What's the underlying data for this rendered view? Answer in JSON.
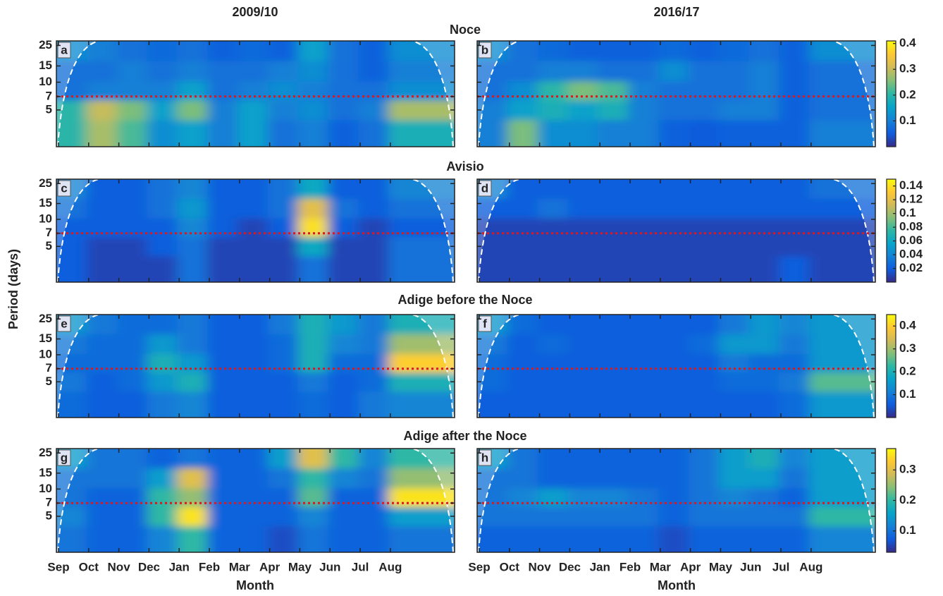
{
  "chart_data": {
    "type": "heatmap",
    "column_titles": [
      "2009/10",
      "2016/17"
    ],
    "xlabel": "Month",
    "ylabel": "Period (days)",
    "x": [
      "Sep",
      "Oct",
      "Nov",
      "Dec",
      "Jan",
      "Feb",
      "Mar",
      "Apr",
      "May",
      "Jun",
      "Jul",
      "Aug"
    ],
    "y": [
      22,
      13,
      8,
      5,
      3
    ],
    "ylim": [
      2,
      28
    ],
    "yticks": [
      5,
      7,
      10,
      15,
      25
    ],
    "log_y": true,
    "reference_period": 7,
    "reference_color": "#e0161b",
    "colormap": "parula",
    "rows": [
      {
        "title": "Noce",
        "clim": [
          0,
          0.41
        ],
        "cticks": [
          0.1,
          0.2,
          0.3,
          0.4
        ],
        "panels": [
          {
            "label": "a",
            "z": [
              [
                0.12,
                0.1,
                0.08,
                0.07,
                0.08,
                0.06,
                0.07,
                0.06,
                0.15,
                0.08,
                0.06,
                0.12
              ],
              [
                0.08,
                0.08,
                0.1,
                0.08,
                0.1,
                0.08,
                0.08,
                0.1,
                0.12,
                0.08,
                0.06,
                0.1
              ],
              [
                0.08,
                0.1,
                0.1,
                0.1,
                0.15,
                0.08,
                0.1,
                0.12,
                0.1,
                0.08,
                0.08,
                0.12
              ],
              [
                0.2,
                0.3,
                0.25,
                0.15,
                0.25,
                0.1,
                0.15,
                0.1,
                0.12,
                0.08,
                0.1,
                0.28
              ],
              [
                0.2,
                0.28,
                0.22,
                0.12,
                0.15,
                0.1,
                0.15,
                0.08,
                0.1,
                0.06,
                0.08,
                0.18
              ]
            ]
          },
          {
            "label": "b",
            "z": [
              [
                0.12,
                0.08,
                0.07,
                0.06,
                0.06,
                0.06,
                0.07,
                0.06,
                0.07,
                0.08,
                0.06,
                0.12
              ],
              [
                0.08,
                0.08,
                0.1,
                0.1,
                0.08,
                0.08,
                0.12,
                0.08,
                0.08,
                0.1,
                0.06,
                0.08
              ],
              [
                0.08,
                0.12,
                0.2,
                0.25,
                0.22,
                0.1,
                0.08,
                0.08,
                0.08,
                0.1,
                0.06,
                0.08
              ],
              [
                0.1,
                0.15,
                0.18,
                0.15,
                0.18,
                0.1,
                0.08,
                0.08,
                0.1,
                0.1,
                0.06,
                0.08
              ],
              [
                0.1,
                0.25,
                0.12,
                0.12,
                0.1,
                0.1,
                0.06,
                0.05,
                0.06,
                0.06,
                0.06,
                0.1
              ]
            ]
          }
        ]
      },
      {
        "title": "Avisio",
        "clim": [
          0,
          0.15
        ],
        "cticks": [
          0.02,
          0.04,
          0.06,
          0.08,
          0.1,
          0.12,
          0.14
        ],
        "panels": [
          {
            "label": "c",
            "z": [
              [
                0.04,
                0.02,
                0.02,
                0.03,
                0.04,
                0.02,
                0.02,
                0.03,
                0.06,
                0.02,
                0.02,
                0.04
              ],
              [
                0.03,
                0.02,
                0.02,
                0.03,
                0.05,
                0.02,
                0.02,
                0.03,
                0.12,
                0.03,
                0.02,
                0.03
              ],
              [
                0.02,
                0.02,
                0.02,
                0.02,
                0.04,
                0.02,
                0.01,
                0.02,
                0.14,
                0.02,
                0.01,
                0.02
              ],
              [
                0.02,
                0.01,
                0.01,
                0.02,
                0.03,
                0.01,
                0.01,
                0.01,
                0.06,
                0.01,
                0.01,
                0.03
              ],
              [
                0.02,
                0.01,
                0.01,
                0.01,
                0.03,
                0.01,
                0.01,
                0.01,
                0.03,
                0.01,
                0.01,
                0.03
              ]
            ]
          },
          {
            "label": "d",
            "z": [
              [
                0.04,
                0.02,
                0.02,
                0.02,
                0.02,
                0.02,
                0.02,
                0.02,
                0.02,
                0.02,
                0.02,
                0.03
              ],
              [
                0.02,
                0.02,
                0.03,
                0.02,
                0.02,
                0.02,
                0.02,
                0.02,
                0.02,
                0.02,
                0.02,
                0.02
              ],
              [
                0.01,
                0.01,
                0.01,
                0.01,
                0.01,
                0.01,
                0.01,
                0.01,
                0.01,
                0.01,
                0.01,
                0.01
              ],
              [
                0.01,
                0.01,
                0.01,
                0.01,
                0.01,
                0.01,
                0.01,
                0.01,
                0.01,
                0.01,
                0.01,
                0.01
              ],
              [
                0.01,
                0.01,
                0.01,
                0.01,
                0.01,
                0.01,
                0.01,
                0.01,
                0.01,
                0.01,
                0.02,
                0.01
              ]
            ]
          }
        ]
      },
      {
        "title": "Adige before the Noce",
        "clim": [
          0,
          0.45
        ],
        "cticks": [
          0.1,
          0.2,
          0.3,
          0.4
        ],
        "panels": [
          {
            "label": "e",
            "z": [
              [
                0.15,
                0.1,
                0.08,
                0.08,
                0.1,
                0.06,
                0.06,
                0.1,
                0.2,
                0.15,
                0.1,
                0.2
              ],
              [
                0.1,
                0.08,
                0.08,
                0.15,
                0.1,
                0.06,
                0.06,
                0.08,
                0.2,
                0.12,
                0.1,
                0.3
              ],
              [
                0.08,
                0.08,
                0.08,
                0.2,
                0.15,
                0.06,
                0.06,
                0.08,
                0.2,
                0.08,
                0.08,
                0.4
              ],
              [
                0.1,
                0.06,
                0.08,
                0.15,
                0.2,
                0.06,
                0.06,
                0.06,
                0.1,
                0.06,
                0.08,
                0.2
              ],
              [
                0.08,
                0.06,
                0.06,
                0.1,
                0.12,
                0.06,
                0.06,
                0.06,
                0.08,
                0.06,
                0.1,
                0.12
              ]
            ]
          },
          {
            "label": "f",
            "z": [
              [
                0.15,
                0.08,
                0.06,
                0.06,
                0.06,
                0.06,
                0.06,
                0.06,
                0.1,
                0.15,
                0.12,
                0.15
              ],
              [
                0.1,
                0.06,
                0.08,
                0.06,
                0.06,
                0.06,
                0.06,
                0.08,
                0.15,
                0.15,
                0.1,
                0.15
              ],
              [
                0.08,
                0.06,
                0.06,
                0.06,
                0.06,
                0.06,
                0.06,
                0.06,
                0.1,
                0.08,
                0.08,
                0.15
              ],
              [
                0.08,
                0.06,
                0.06,
                0.06,
                0.06,
                0.06,
                0.06,
                0.06,
                0.08,
                0.08,
                0.1,
                0.25
              ],
              [
                0.06,
                0.06,
                0.06,
                0.06,
                0.06,
                0.06,
                0.06,
                0.06,
                0.06,
                0.06,
                0.08,
                0.15
              ]
            ]
          }
        ]
      },
      {
        "title": "Adige after the Noce",
        "clim": [
          0.03,
          0.37
        ],
        "cticks": [
          0.1,
          0.2,
          0.3
        ],
        "panels": [
          {
            "label": "g",
            "z": [
              [
                0.15,
                0.1,
                0.1,
                0.08,
                0.1,
                0.08,
                0.08,
                0.15,
                0.3,
                0.2,
                0.12,
                0.2
              ],
              [
                0.1,
                0.1,
                0.1,
                0.15,
                0.3,
                0.08,
                0.08,
                0.1,
                0.2,
                0.12,
                0.1,
                0.25
              ],
              [
                0.1,
                0.08,
                0.08,
                0.2,
                0.25,
                0.08,
                0.08,
                0.08,
                0.22,
                0.08,
                0.08,
                0.35
              ],
              [
                0.12,
                0.08,
                0.08,
                0.2,
                0.35,
                0.08,
                0.08,
                0.08,
                0.12,
                0.08,
                0.08,
                0.15
              ],
              [
                0.1,
                0.08,
                0.08,
                0.12,
                0.2,
                0.08,
                0.08,
                0.06,
                0.1,
                0.08,
                0.08,
                0.1
              ]
            ]
          },
          {
            "label": "h",
            "z": [
              [
                0.15,
                0.1,
                0.08,
                0.08,
                0.08,
                0.08,
                0.08,
                0.1,
                0.15,
                0.18,
                0.12,
                0.15
              ],
              [
                0.1,
                0.1,
                0.08,
                0.08,
                0.08,
                0.08,
                0.08,
                0.1,
                0.15,
                0.15,
                0.1,
                0.15
              ],
              [
                0.1,
                0.12,
                0.15,
                0.12,
                0.12,
                0.1,
                0.08,
                0.1,
                0.12,
                0.1,
                0.08,
                0.15
              ],
              [
                0.1,
                0.1,
                0.1,
                0.1,
                0.1,
                0.1,
                0.08,
                0.1,
                0.1,
                0.1,
                0.1,
                0.2
              ],
              [
                0.08,
                0.08,
                0.08,
                0.08,
                0.08,
                0.08,
                0.06,
                0.08,
                0.08,
                0.08,
                0.08,
                0.12
              ]
            ]
          }
        ]
      }
    ]
  }
}
